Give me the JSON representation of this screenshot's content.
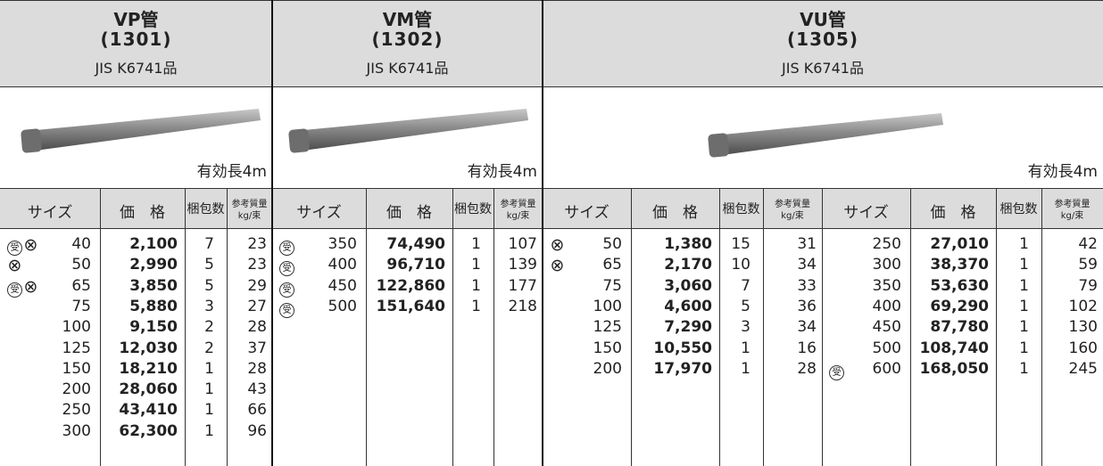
{
  "sections": [
    {
      "title": "VP管",
      "code": "(1301)",
      "standard": "JIS K6741品",
      "length_note": "有効長4m",
      "tables": [
        {
          "columns": [
            "サイズ",
            "価　格",
            "梱包数",
            [
              "参考質量",
              "kg/束"
            ]
          ],
          "rows": [
            {
              "marks": [
                "受",
                "⊗"
              ],
              "size": 40,
              "price": "2,100",
              "bundle": 7,
              "weight": 23
            },
            {
              "marks": [
                "⊗"
              ],
              "size": 50,
              "price": "2,990",
              "bundle": 5,
              "weight": 23
            },
            {
              "marks": [
                "受",
                "⊗"
              ],
              "size": 65,
              "price": "3,850",
              "bundle": 5,
              "weight": 29
            },
            {
              "marks": [],
              "size": 75,
              "price": "5,880",
              "bundle": 3,
              "weight": 27
            },
            {
              "marks": [],
              "size": 100,
              "price": "9,150",
              "bundle": 2,
              "weight": 28
            },
            {
              "marks": [],
              "size": 125,
              "price": "12,030",
              "bundle": 2,
              "weight": 37
            },
            {
              "marks": [],
              "size": 150,
              "price": "18,210",
              "bundle": 1,
              "weight": 28
            },
            {
              "marks": [],
              "size": 200,
              "price": "28,060",
              "bundle": 1,
              "weight": 43
            },
            {
              "marks": [],
              "size": 250,
              "price": "43,410",
              "bundle": 1,
              "weight": 66
            },
            {
              "marks": [],
              "size": 300,
              "price": "62,300",
              "bundle": 1,
              "weight": 96
            }
          ]
        }
      ]
    },
    {
      "title": "VM管",
      "code": "(1302)",
      "standard": "JIS K6741品",
      "length_note": "有効長4m",
      "tables": [
        {
          "columns": [
            "サイズ",
            "価　格",
            "梱包数",
            [
              "参考質量",
              "kg/束"
            ]
          ],
          "rows": [
            {
              "marks": [
                "受"
              ],
              "size": 350,
              "price": "74,490",
              "bundle": 1,
              "weight": 107
            },
            {
              "marks": [
                "受"
              ],
              "size": 400,
              "price": "96,710",
              "bundle": 1,
              "weight": 139
            },
            {
              "marks": [
                "受"
              ],
              "size": 450,
              "price": "122,860",
              "bundle": 1,
              "weight": 177
            },
            {
              "marks": [
                "受"
              ],
              "size": 500,
              "price": "151,640",
              "bundle": 1,
              "weight": 218
            }
          ]
        }
      ]
    },
    {
      "title": "VU管",
      "code": "(1305)",
      "standard": "JIS K6741品",
      "length_note": "有効長4m",
      "tables": [
        {
          "columns": [
            "サイズ",
            "価　格",
            "梱包数",
            [
              "参考質量",
              "kg/束"
            ]
          ],
          "rows": [
            {
              "marks": [
                "⊗"
              ],
              "size": 50,
              "price": "1,380",
              "bundle": 15,
              "weight": 31
            },
            {
              "marks": [
                "⊗"
              ],
              "size": 65,
              "price": "2,170",
              "bundle": 10,
              "weight": 34
            },
            {
              "marks": [],
              "size": 75,
              "price": "3,060",
              "bundle": 7,
              "weight": 33
            },
            {
              "marks": [],
              "size": 100,
              "price": "4,600",
              "bundle": 5,
              "weight": 36
            },
            {
              "marks": [],
              "size": 125,
              "price": "7,290",
              "bundle": 3,
              "weight": 34
            },
            {
              "marks": [],
              "size": 150,
              "price": "10,550",
              "bundle": 1,
              "weight": 16
            },
            {
              "marks": [],
              "size": 200,
              "price": "17,970",
              "bundle": 1,
              "weight": 28
            }
          ]
        },
        {
          "columns": [
            "サイズ",
            "価　格",
            "梱包数",
            [
              "参考質量",
              "kg/束"
            ]
          ],
          "rows": [
            {
              "marks": [],
              "size": 250,
              "price": "27,010",
              "bundle": 1,
              "weight": 42
            },
            {
              "marks": [],
              "size": 300,
              "price": "38,370",
              "bundle": 1,
              "weight": 59
            },
            {
              "marks": [],
              "size": 350,
              "price": "53,630",
              "bundle": 1,
              "weight": 79
            },
            {
              "marks": [],
              "size": 400,
              "price": "69,290",
              "bundle": 1,
              "weight": 102
            },
            {
              "marks": [],
              "size": 450,
              "price": "87,780",
              "bundle": 1,
              "weight": 130
            },
            {
              "marks": [],
              "size": 500,
              "price": "108,740",
              "bundle": 1,
              "weight": 160
            },
            {
              "marks": [
                "受"
              ],
              "size": 600,
              "price": "168,050",
              "bundle": 1,
              "weight": 245
            }
          ]
        }
      ]
    }
  ]
}
